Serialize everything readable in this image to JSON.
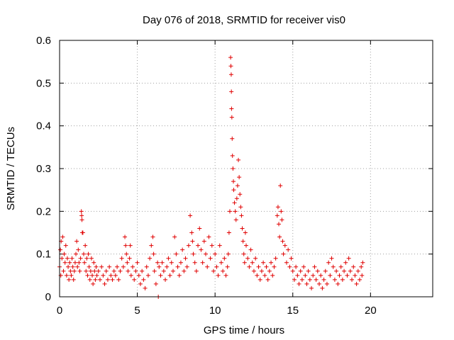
{
  "chart_data": {
    "type": "scatter",
    "title": "Day 076 of 2018, SRMTID for receiver vis0",
    "xlabel": "GPS time / hours",
    "ylabel": "SRMTID / TECUs",
    "xlim": [
      0,
      24
    ],
    "ylim": [
      0,
      0.6
    ],
    "xticks": [
      "0",
      "5",
      "10",
      "15",
      "20"
    ],
    "xtick_values": [
      0,
      5,
      10,
      15,
      20
    ],
    "yticks": [
      "0",
      "0.1",
      "0.2",
      "0.3",
      "0.4",
      "0.5",
      "0.6"
    ],
    "ytick_values": [
      0,
      0.1,
      0.2,
      0.3,
      0.4,
      0.5,
      0.6
    ],
    "grid": true,
    "marker": "+",
    "color": "#e00000",
    "series": [
      {
        "name": "vis0",
        "points": [
          [
            0.0,
            0.07
          ],
          [
            0.05,
            0.11
          ],
          [
            0.08,
            0.05
          ],
          [
            0.1,
            0.13
          ],
          [
            0.15,
            0.09
          ],
          [
            0.2,
            0.14
          ],
          [
            0.25,
            0.06
          ],
          [
            0.3,
            0.1
          ],
          [
            0.35,
            0.08
          ],
          [
            0.4,
            0.12
          ],
          [
            0.45,
            0.05
          ],
          [
            0.5,
            0.09
          ],
          [
            0.55,
            0.07
          ],
          [
            0.6,
            0.04
          ],
          [
            0.65,
            0.08
          ],
          [
            0.7,
            0.06
          ],
          [
            0.75,
            0.05
          ],
          [
            0.8,
            0.09
          ],
          [
            0.85,
            0.07
          ],
          [
            0.9,
            0.04
          ],
          [
            0.95,
            0.06
          ],
          [
            1.0,
            0.08
          ],
          [
            1.05,
            0.1
          ],
          [
            1.1,
            0.13
          ],
          [
            1.15,
            0.07
          ],
          [
            1.2,
            0.11
          ],
          [
            1.25,
            0.08
          ],
          [
            1.3,
            0.06
          ],
          [
            1.35,
            0.09
          ],
          [
            1.4,
            0.2
          ],
          [
            1.42,
            0.19
          ],
          [
            1.44,
            0.18
          ],
          [
            1.46,
            0.15
          ],
          [
            1.5,
            0.15
          ],
          [
            1.55,
            0.1
          ],
          [
            1.6,
            0.08
          ],
          [
            1.65,
            0.12
          ],
          [
            1.7,
            0.06
          ],
          [
            1.75,
            0.09
          ],
          [
            1.8,
            0.05
          ],
          [
            1.85,
            0.1
          ],
          [
            1.9,
            0.07
          ],
          [
            1.95,
            0.04
          ],
          [
            2.0,
            0.06
          ],
          [
            2.05,
            0.09
          ],
          [
            2.1,
            0.05
          ],
          [
            2.15,
            0.03
          ],
          [
            2.2,
            0.08
          ],
          [
            2.25,
            0.06
          ],
          [
            2.3,
            0.04
          ],
          [
            2.35,
            0.07
          ],
          [
            2.4,
            0.05
          ],
          [
            2.5,
            0.06
          ],
          [
            2.6,
            0.04
          ],
          [
            2.7,
            0.07
          ],
          [
            2.8,
            0.05
          ],
          [
            2.9,
            0.03
          ],
          [
            3.0,
            0.06
          ],
          [
            3.1,
            0.04
          ],
          [
            3.2,
            0.07
          ],
          [
            3.3,
            0.05
          ],
          [
            3.4,
            0.04
          ],
          [
            3.5,
            0.06
          ],
          [
            3.6,
            0.05
          ],
          [
            3.7,
            0.07
          ],
          [
            3.8,
            0.04
          ],
          [
            3.9,
            0.06
          ],
          [
            4.0,
            0.09
          ],
          [
            4.1,
            0.07
          ],
          [
            4.2,
            0.14
          ],
          [
            4.25,
            0.12
          ],
          [
            4.3,
            0.1
          ],
          [
            4.35,
            0.08
          ],
          [
            4.4,
            0.06
          ],
          [
            4.5,
            0.09
          ],
          [
            4.55,
            0.12
          ],
          [
            4.6,
            0.05
          ],
          [
            4.7,
            0.07
          ],
          [
            4.8,
            0.04
          ],
          [
            4.9,
            0.06
          ],
          [
            5.0,
            0.08
          ],
          [
            5.1,
            0.05
          ],
          [
            5.2,
            0.03
          ],
          [
            5.3,
            0.06
          ],
          [
            5.4,
            0.04
          ],
          [
            5.5,
            0.02
          ],
          [
            5.6,
            0.07
          ],
          [
            5.7,
            0.05
          ],
          [
            5.8,
            0.09
          ],
          [
            5.9,
            0.12
          ],
          [
            6.0,
            0.14
          ],
          [
            6.05,
            0.1
          ],
          [
            6.1,
            0.06
          ],
          [
            6.2,
            0.03
          ],
          [
            6.3,
            0.08
          ],
          [
            6.35,
            0.0
          ],
          [
            6.4,
            0.07
          ],
          [
            6.5,
            0.05
          ],
          [
            6.6,
            0.08
          ],
          [
            6.7,
            0.06
          ],
          [
            6.8,
            0.04
          ],
          [
            6.9,
            0.07
          ],
          [
            7.0,
            0.09
          ],
          [
            7.1,
            0.05
          ],
          [
            7.2,
            0.08
          ],
          [
            7.3,
            0.06
          ],
          [
            7.4,
            0.14
          ],
          [
            7.5,
            0.1
          ],
          [
            7.6,
            0.07
          ],
          [
            7.7,
            0.05
          ],
          [
            7.8,
            0.08
          ],
          [
            7.9,
            0.11
          ],
          [
            8.0,
            0.06
          ],
          [
            8.1,
            0.09
          ],
          [
            8.2,
            0.07
          ],
          [
            8.3,
            0.12
          ],
          [
            8.4,
            0.19
          ],
          [
            8.5,
            0.15
          ],
          [
            8.55,
            0.13
          ],
          [
            8.6,
            0.1
          ],
          [
            8.7,
            0.08
          ],
          [
            8.8,
            0.06
          ],
          [
            8.9,
            0.12
          ],
          [
            9.0,
            0.16
          ],
          [
            9.1,
            0.11
          ],
          [
            9.2,
            0.08
          ],
          [
            9.3,
            0.13
          ],
          [
            9.4,
            0.1
          ],
          [
            9.5,
            0.07
          ],
          [
            9.6,
            0.14
          ],
          [
            9.7,
            0.09
          ],
          [
            9.8,
            0.12
          ],
          [
            9.9,
            0.06
          ],
          [
            10.0,
            0.1
          ],
          [
            10.1,
            0.07
          ],
          [
            10.2,
            0.05
          ],
          [
            10.3,
            0.12
          ],
          [
            10.4,
            0.08
          ],
          [
            10.5,
            0.06
          ],
          [
            10.6,
            0.09
          ],
          [
            10.7,
            0.05
          ],
          [
            10.8,
            0.07
          ],
          [
            10.85,
            0.1
          ],
          [
            10.9,
            0.15
          ],
          [
            10.95,
            0.2
          ],
          [
            11.0,
            0.56
          ],
          [
            11.02,
            0.54
          ],
          [
            11.04,
            0.52
          ],
          [
            11.05,
            0.48
          ],
          [
            11.06,
            0.44
          ],
          [
            11.08,
            0.42
          ],
          [
            11.1,
            0.37
          ],
          [
            11.12,
            0.33
          ],
          [
            11.15,
            0.3
          ],
          [
            11.18,
            0.27
          ],
          [
            11.2,
            0.25
          ],
          [
            11.25,
            0.22
          ],
          [
            11.3,
            0.2
          ],
          [
            11.35,
            0.18
          ],
          [
            11.4,
            0.23
          ],
          [
            11.45,
            0.26
          ],
          [
            11.5,
            0.32
          ],
          [
            11.55,
            0.28
          ],
          [
            11.6,
            0.24
          ],
          [
            11.65,
            0.21
          ],
          [
            11.7,
            0.19
          ],
          [
            11.75,
            0.16
          ],
          [
            11.8,
            0.13
          ],
          [
            11.85,
            0.1
          ],
          [
            11.9,
            0.08
          ],
          [
            11.95,
            0.15
          ],
          [
            12.0,
            0.12
          ],
          [
            12.1,
            0.09
          ],
          [
            12.2,
            0.07
          ],
          [
            12.3,
            0.11
          ],
          [
            12.4,
            0.08
          ],
          [
            12.5,
            0.06
          ],
          [
            12.6,
            0.09
          ],
          [
            12.7,
            0.05
          ],
          [
            12.8,
            0.07
          ],
          [
            12.9,
            0.04
          ],
          [
            13.0,
            0.06
          ],
          [
            13.1,
            0.08
          ],
          [
            13.2,
            0.05
          ],
          [
            13.3,
            0.07
          ],
          [
            13.4,
            0.04
          ],
          [
            13.5,
            0.06
          ],
          [
            13.6,
            0.08
          ],
          [
            13.7,
            0.05
          ],
          [
            13.8,
            0.07
          ],
          [
            13.9,
            0.09
          ],
          [
            14.0,
            0.19
          ],
          [
            14.05,
            0.21
          ],
          [
            14.1,
            0.17
          ],
          [
            14.15,
            0.14
          ],
          [
            14.2,
            0.26
          ],
          [
            14.25,
            0.2
          ],
          [
            14.3,
            0.18
          ],
          [
            14.35,
            0.13
          ],
          [
            14.4,
            0.1
          ],
          [
            14.5,
            0.12
          ],
          [
            14.6,
            0.08
          ],
          [
            14.7,
            0.11
          ],
          [
            14.8,
            0.07
          ],
          [
            14.9,
            0.09
          ],
          [
            15.0,
            0.06
          ],
          [
            15.1,
            0.04
          ],
          [
            15.2,
            0.07
          ],
          [
            15.3,
            0.05
          ],
          [
            15.4,
            0.03
          ],
          [
            15.5,
            0.06
          ],
          [
            15.6,
            0.04
          ],
          [
            15.7,
            0.07
          ],
          [
            15.8,
            0.05
          ],
          [
            15.9,
            0.03
          ],
          [
            16.0,
            0.06
          ],
          [
            16.1,
            0.04
          ],
          [
            16.2,
            0.02
          ],
          [
            16.3,
            0.05
          ],
          [
            16.4,
            0.07
          ],
          [
            16.5,
            0.04
          ],
          [
            16.6,
            0.06
          ],
          [
            16.7,
            0.03
          ],
          [
            16.8,
            0.05
          ],
          [
            16.9,
            0.02
          ],
          [
            17.0,
            0.04
          ],
          [
            17.1,
            0.06
          ],
          [
            17.2,
            0.03
          ],
          [
            17.3,
            0.08
          ],
          [
            17.4,
            0.05
          ],
          [
            17.5,
            0.09
          ],
          [
            17.6,
            0.07
          ],
          [
            17.7,
            0.04
          ],
          [
            17.8,
            0.06
          ],
          [
            17.9,
            0.03
          ],
          [
            18.0,
            0.05
          ],
          [
            18.1,
            0.07
          ],
          [
            18.2,
            0.04
          ],
          [
            18.3,
            0.06
          ],
          [
            18.4,
            0.08
          ],
          [
            18.5,
            0.05
          ],
          [
            18.6,
            0.09
          ],
          [
            18.7,
            0.06
          ],
          [
            18.8,
            0.04
          ],
          [
            18.9,
            0.07
          ],
          [
            19.0,
            0.05
          ],
          [
            19.1,
            0.03
          ],
          [
            19.2,
            0.06
          ],
          [
            19.3,
            0.04
          ],
          [
            19.4,
            0.07
          ],
          [
            19.45,
            0.05
          ],
          [
            19.5,
            0.08
          ]
        ]
      }
    ]
  }
}
